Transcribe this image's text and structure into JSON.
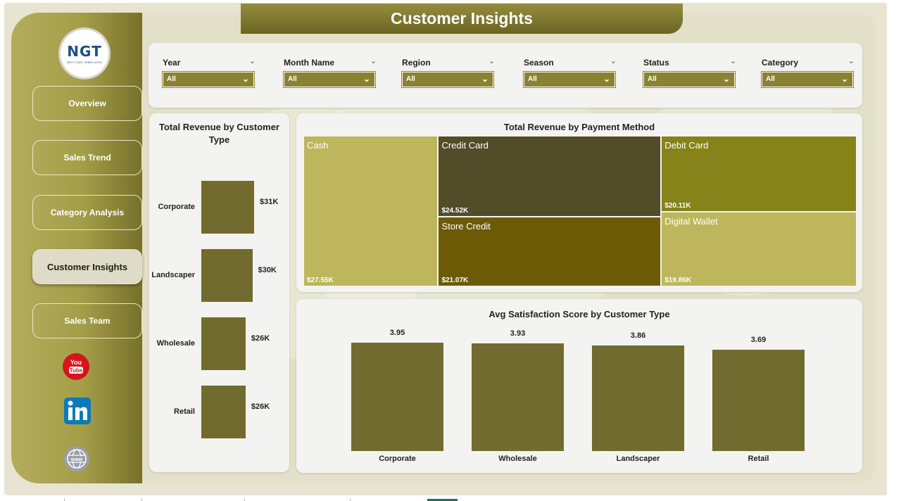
{
  "page_title": "Customer Insights",
  "logo": {
    "text": "NGT",
    "subtitle": "NEXT GEN TEMPLATES"
  },
  "nav": [
    {
      "label": "Overview",
      "active": false
    },
    {
      "label": "Sales Trend",
      "active": false
    },
    {
      "label": "Category Analysis",
      "active": false
    },
    {
      "label": "Customer Insights",
      "active": true
    },
    {
      "label": "Sales Team",
      "active": false
    }
  ],
  "social": {
    "youtube": "You Tube",
    "linkedin": "in",
    "web": "www"
  },
  "filters": [
    {
      "label": "Year",
      "value": "All"
    },
    {
      "label": "Month Name",
      "value": "All"
    },
    {
      "label": "Region",
      "value": "All"
    },
    {
      "label": "Season",
      "value": "All"
    },
    {
      "label": "Status",
      "value": "All"
    },
    {
      "label": "Category",
      "value": "All"
    }
  ],
  "colors": {
    "accent": "#8a8233",
    "bar": "#716b30",
    "sidebar_dark": "#77702a",
    "title_bar": "#7d7630"
  },
  "chart_data": [
    {
      "type": "bar",
      "orientation": "horizontal",
      "title": "Total Revenue by Customer Type",
      "categories": [
        "Corporate",
        "Landscaper",
        "Wholesale",
        "Retail"
      ],
      "values": [
        31,
        30,
        26,
        26
      ],
      "labels": [
        "$31K",
        "$30K",
        "$26K",
        "$26K"
      ],
      "unit": "K$"
    },
    {
      "type": "treemap",
      "title": "Total Revenue by Payment Method",
      "items": [
        {
          "name": "Cash",
          "value": 27.55,
          "label": "$27.55K",
          "color": "#bdb65c"
        },
        {
          "name": "Credit Card",
          "value": 24.52,
          "label": "$24.52K",
          "color": "#524c29"
        },
        {
          "name": "Store Credit",
          "value": 21.07,
          "label": "$21.07K",
          "color": "#6d5a06"
        },
        {
          "name": "Debit Card",
          "value": 20.11,
          "label": "$20.11K",
          "color": "#858319"
        },
        {
          "name": "Digital Wallet",
          "value": 19.86,
          "label": "$19.86K",
          "color": "#bdb65c"
        }
      ]
    },
    {
      "type": "bar",
      "orientation": "vertical",
      "title": "Avg Satisfaction Score by Customer Type",
      "categories": [
        "Corporate",
        "Wholesale",
        "Landscaper",
        "Retail"
      ],
      "values": [
        3.95,
        3.93,
        3.86,
        3.69
      ],
      "labels": [
        "3.95",
        "3.93",
        "3.86",
        "3.69"
      ]
    }
  ]
}
